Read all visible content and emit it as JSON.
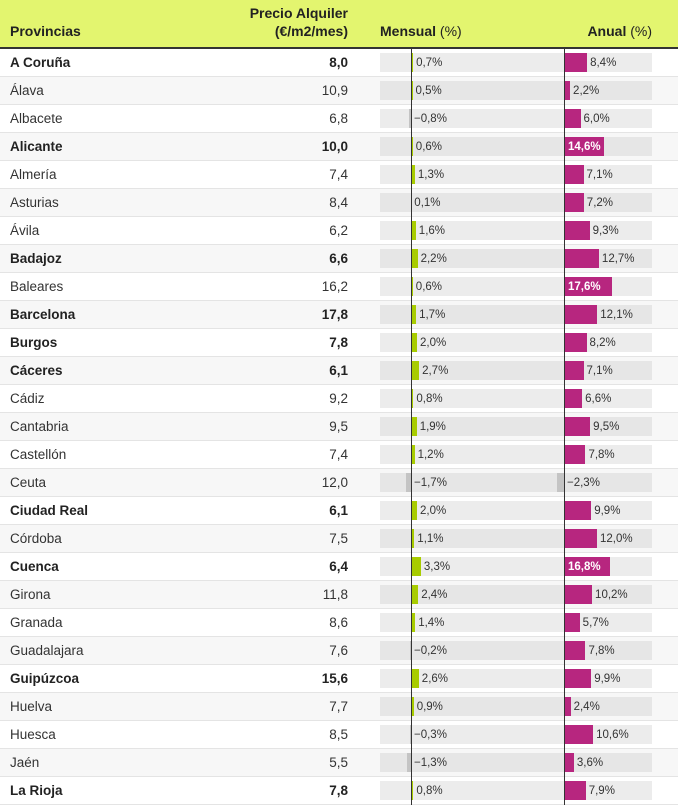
{
  "header": {
    "provincias": "Provincias",
    "precio_line1": "Precio Alquiler",
    "precio_line2": "(€/m2/mes)",
    "mensual": "Mensual",
    "mensual_unit": " (%)",
    "anual": "Anual",
    "anual_unit": " (%)"
  },
  "colors": {
    "header_bg": "#e3f56f",
    "mensual_pos": "#a8cc00",
    "negative": "#c4c4c4",
    "anual_pos": "#b7267f"
  },
  "rows": [
    {
      "name": "A Coruña",
      "price": "8,0",
      "mensual": 0.7,
      "mensual_label": "0,7%",
      "anual": 8.4,
      "anual_label": "8,4%",
      "bold": true
    },
    {
      "name": "Álava",
      "price": "10,9",
      "mensual": 0.5,
      "mensual_label": "0,5%",
      "anual": 2.2,
      "anual_label": "2,2%",
      "bold": false
    },
    {
      "name": "Albacete",
      "price": "6,8",
      "mensual": -0.8,
      "mensual_label": "−0,8%",
      "anual": 6.0,
      "anual_label": "6,0%",
      "bold": false
    },
    {
      "name": "Alicante",
      "price": "10,0",
      "mensual": 0.6,
      "mensual_label": "0,6%",
      "anual": 14.6,
      "anual_label": "14,6%",
      "bold": true
    },
    {
      "name": "Almería",
      "price": "7,4",
      "mensual": 1.3,
      "mensual_label": "1,3%",
      "anual": 7.1,
      "anual_label": "7,1%",
      "bold": false
    },
    {
      "name": "Asturias",
      "price": "8,4",
      "mensual": 0.1,
      "mensual_label": "0,1%",
      "anual": 7.2,
      "anual_label": "7,2%",
      "bold": false
    },
    {
      "name": "Ávila",
      "price": "6,2",
      "mensual": 1.6,
      "mensual_label": "1,6%",
      "anual": 9.3,
      "anual_label": "9,3%",
      "bold": false
    },
    {
      "name": "Badajoz",
      "price": "6,6",
      "mensual": 2.2,
      "mensual_label": "2,2%",
      "anual": 12.7,
      "anual_label": "12,7%",
      "bold": true
    },
    {
      "name": "Baleares",
      "price": "16,2",
      "mensual": 0.6,
      "mensual_label": "0,6%",
      "anual": 17.6,
      "anual_label": "17,6%",
      "bold": false
    },
    {
      "name": "Barcelona",
      "price": "17,8",
      "mensual": 1.7,
      "mensual_label": "1,7%",
      "anual": 12.1,
      "anual_label": "12,1%",
      "bold": true
    },
    {
      "name": "Burgos",
      "price": "7,8",
      "mensual": 2.0,
      "mensual_label": "2,0%",
      "anual": 8.2,
      "anual_label": "8,2%",
      "bold": true
    },
    {
      "name": "Cáceres",
      "price": "6,1",
      "mensual": 2.7,
      "mensual_label": "2,7%",
      "anual": 7.1,
      "anual_label": "7,1%",
      "bold": true
    },
    {
      "name": "Cádiz",
      "price": "9,2",
      "mensual": 0.8,
      "mensual_label": "0,8%",
      "anual": 6.6,
      "anual_label": "6,6%",
      "bold": false
    },
    {
      "name": "Cantabria",
      "price": "9,5",
      "mensual": 1.9,
      "mensual_label": "1,9%",
      "anual": 9.5,
      "anual_label": "9,5%",
      "bold": false
    },
    {
      "name": "Castellón",
      "price": "7,4",
      "mensual": 1.2,
      "mensual_label": "1,2%",
      "anual": 7.8,
      "anual_label": "7,8%",
      "bold": false
    },
    {
      "name": "Ceuta",
      "price": "12,0",
      "mensual": -1.7,
      "mensual_label": "−1,7%",
      "anual": -2.3,
      "anual_label": "−2,3%",
      "bold": false
    },
    {
      "name": "Ciudad Real",
      "price": "6,1",
      "mensual": 2.0,
      "mensual_label": "2,0%",
      "anual": 9.9,
      "anual_label": "9,9%",
      "bold": true
    },
    {
      "name": "Córdoba",
      "price": "7,5",
      "mensual": 1.1,
      "mensual_label": "1,1%",
      "anual": 12.0,
      "anual_label": "12,0%",
      "bold": false
    },
    {
      "name": "Cuenca",
      "price": "6,4",
      "mensual": 3.3,
      "mensual_label": "3,3%",
      "anual": 16.8,
      "anual_label": "16,8%",
      "bold": true
    },
    {
      "name": "Girona",
      "price": "11,8",
      "mensual": 2.4,
      "mensual_label": "2,4%",
      "anual": 10.2,
      "anual_label": "10,2%",
      "bold": false
    },
    {
      "name": "Granada",
      "price": "8,6",
      "mensual": 1.4,
      "mensual_label": "1,4%",
      "anual": 5.7,
      "anual_label": "5,7%",
      "bold": false
    },
    {
      "name": "Guadalajara",
      "price": "7,6",
      "mensual": -0.2,
      "mensual_label": "−0,2%",
      "anual": 7.8,
      "anual_label": "7,8%",
      "bold": false
    },
    {
      "name": "Guipúzcoa",
      "price": "15,6",
      "mensual": 2.6,
      "mensual_label": "2,6%",
      "anual": 9.9,
      "anual_label": "9,9%",
      "bold": true
    },
    {
      "name": "Huelva",
      "price": "7,7",
      "mensual": 0.9,
      "mensual_label": "0,9%",
      "anual": 2.4,
      "anual_label": "2,4%",
      "bold": false
    },
    {
      "name": "Huesca",
      "price": "8,5",
      "mensual": -0.3,
      "mensual_label": "−0,3%",
      "anual": 10.6,
      "anual_label": "10,6%",
      "bold": false
    },
    {
      "name": "Jaén",
      "price": "5,5",
      "mensual": -1.3,
      "mensual_label": "−1,3%",
      "anual": 3.6,
      "anual_label": "3,6%",
      "bold": false
    },
    {
      "name": "La Rioja",
      "price": "7,8",
      "mensual": 0.8,
      "mensual_label": "0,8%",
      "anual": 7.9,
      "anual_label": "7,9%",
      "bold": true
    }
  ]
}
